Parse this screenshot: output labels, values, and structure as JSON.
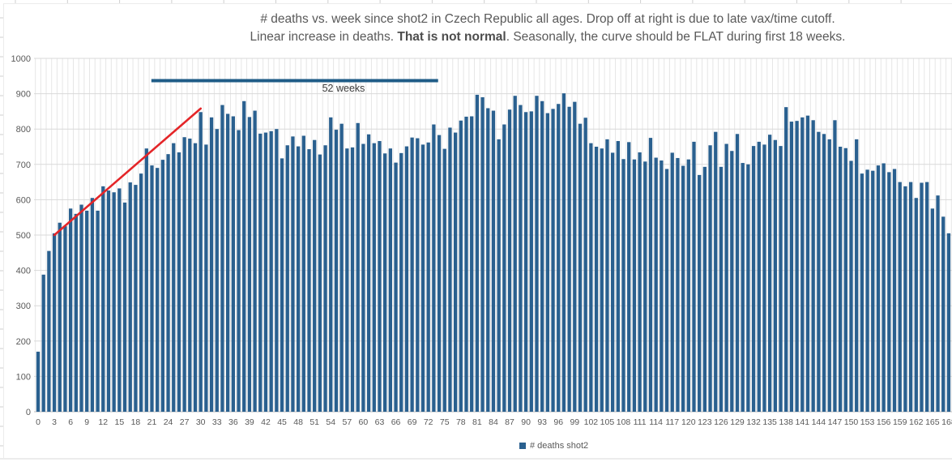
{
  "chart": {
    "title_line1": "# deaths vs. week since shot2 in Czech Republic all ages. Drop off at right is due to late vax/time cutoff.",
    "title_line2_prefix": "Linear increase in deaths. ",
    "title_line2_bold": "That is not normal",
    "title_line2_suffix": ". Seasonally, the curve should be FLAT during first 18 weeks.",
    "legend_label": "# deaths shot2",
    "ruler_label": "52 weeks"
  },
  "chart_data": {
    "type": "bar",
    "title": "# deaths vs. week since shot2 in Czech Republic all ages. Drop off at right is due to late vax/time cutoff. Linear increase in deaths. That is not normal. Seasonally, the curve should be FLAT during first 18 weeks.",
    "xlabel": "",
    "ylabel": "",
    "x_start": 0,
    "x_step": 1,
    "xtick_step": 3,
    "ylim": [
      0,
      1000
    ],
    "ytick_step": 100,
    "grid": true,
    "legend_position": "bottom",
    "bar_color": "#2a608f",
    "series": [
      {
        "name": "# deaths shot2",
        "values": [
          170,
          388,
          455,
          505,
          535,
          525,
          575,
          560,
          586,
          569,
          605,
          569,
          638,
          626,
          621,
          632,
          592,
          649,
          642,
          674,
          745,
          697,
          690,
          713,
          729,
          760,
          734,
          777,
          773,
          760,
          848,
          756,
          833,
          800,
          868,
          843,
          836,
          797,
          879,
          834,
          852,
          787,
          790,
          794,
          800,
          717,
          754,
          779,
          751,
          781,
          743,
          769,
          728,
          754,
          833,
          798,
          815,
          745,
          748,
          817,
          758,
          785,
          760,
          766,
          731,
          745,
          705,
          732,
          751,
          776,
          774,
          756,
          762,
          813,
          783,
          744,
          804,
          790,
          824,
          835,
          836,
          897,
          890,
          859,
          852,
          771,
          813,
          855,
          894,
          868,
          848,
          850,
          894,
          879,
          845,
          857,
          871,
          901,
          863,
          877,
          815,
          832,
          760,
          750,
          745,
          771,
          733,
          766,
          715,
          763,
          714,
          734,
          708,
          775,
          719,
          711,
          687,
          733,
          718,
          696,
          714,
          764,
          670,
          693,
          754,
          792,
          693,
          758,
          738,
          786,
          704,
          700,
          752,
          764,
          756,
          784,
          769,
          752,
          862,
          821,
          823,
          833,
          838,
          825,
          792,
          786,
          771,
          825,
          750,
          746,
          710,
          771,
          674,
          685,
          682,
          697,
          703,
          678,
          687,
          650,
          638,
          650,
          605,
          648,
          650,
          575,
          612,
          552,
          505
        ]
      }
    ],
    "annotations": [
      {
        "kind": "hline_ruler",
        "label": "52 weeks",
        "value": 937,
        "from_week": 20.9,
        "to_week": 73.8,
        "color": "#1f5c87"
      },
      {
        "kind": "trend_line",
        "from_week": 3,
        "from_value": 500,
        "to_week": 30,
        "to_value": 858,
        "color": "#e42528"
      }
    ]
  }
}
